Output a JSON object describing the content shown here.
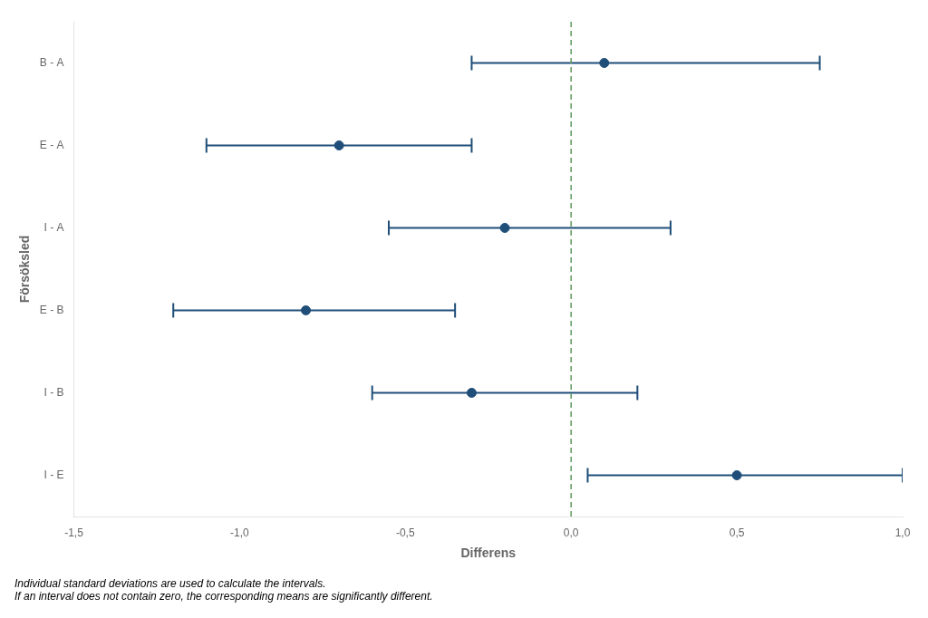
{
  "chart_data": {
    "type": "interval",
    "orientation": "horizontal",
    "categories": [
      "B - A",
      "E - A",
      "I - A",
      "E - B",
      "I - B",
      "I - E"
    ],
    "values": [
      0.1,
      -0.7,
      -0.2,
      -0.8,
      -0.3,
      0.5
    ],
    "ci_low": [
      -0.3,
      -1.1,
      -0.55,
      -1.2,
      -0.6,
      0.05
    ],
    "ci_high": [
      0.75,
      -0.3,
      0.3,
      -0.35,
      0.2,
      1.0
    ],
    "color": "#1F4E79",
    "xlabel": "Differens",
    "ylabel": "Försöksled",
    "xlim": [
      -1.5,
      1.0
    ],
    "xticks": [
      {
        "value": -1.5,
        "label": "-1,5"
      },
      {
        "value": -1.0,
        "label": "-1,0"
      },
      {
        "value": -0.5,
        "label": "-0,5"
      },
      {
        "value": 0.0,
        "label": "0,0"
      },
      {
        "value": 0.5,
        "label": "0,5"
      },
      {
        "value": 1.0,
        "label": "1,0"
      }
    ],
    "vline": {
      "x": 0.0,
      "color": "#5B9A5B",
      "line_style": "dashed"
    },
    "annotations": [
      "Individual standard deviations are used to calculate the intervals.",
      "If an interval does not contain zero, the corresponding means are significantly different."
    ],
    "grid": false
  }
}
